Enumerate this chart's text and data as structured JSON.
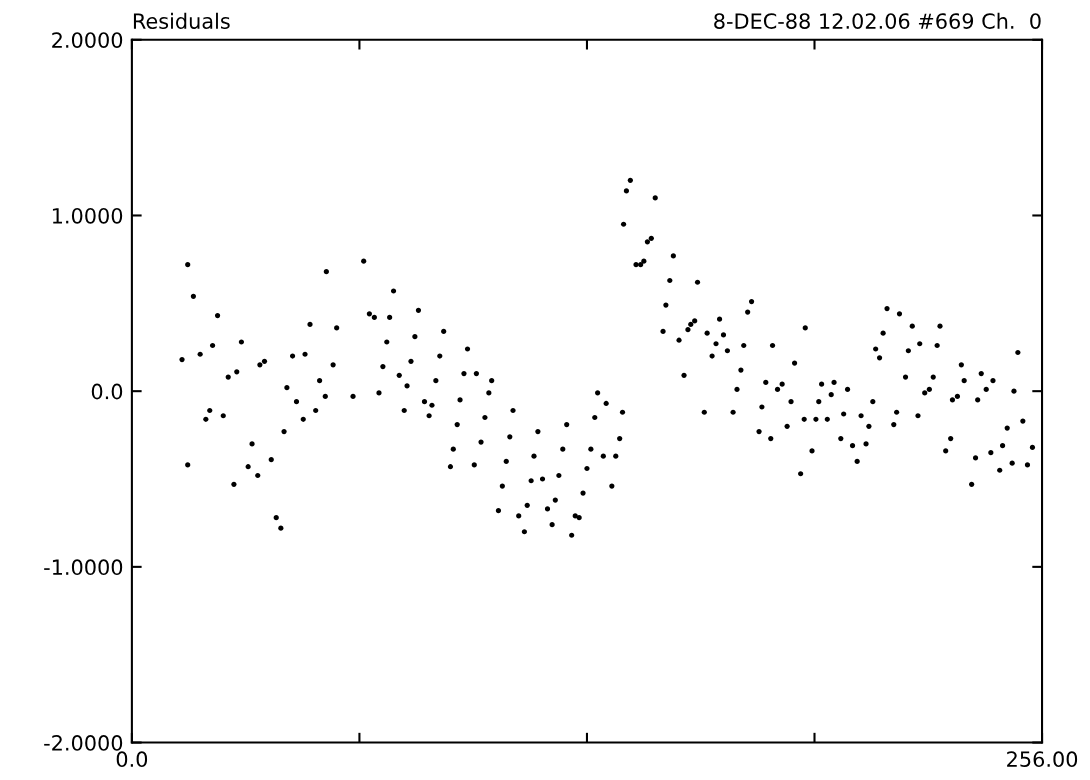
{
  "chart_data": {
    "type": "scatter",
    "title": "Residuals",
    "subtitle": "8-DEC-88 12.02.06 #669 Ch.  0",
    "xlim": [
      0,
      256
    ],
    "ylim": [
      -2,
      2
    ],
    "xticks": [
      {
        "value": 0,
        "label": "0.0"
      },
      {
        "value": 64,
        "label": null
      },
      {
        "value": 128,
        "label": null
      },
      {
        "value": 192,
        "label": null
      },
      {
        "value": 256,
        "label": "256.00"
      }
    ],
    "yticks": [
      {
        "value": -2,
        "label": "-2.0000"
      },
      {
        "value": -1,
        "label": "-1.0000"
      },
      {
        "value": 0,
        "label": "0.0"
      },
      {
        "value": 1,
        "label": "1.0000"
      },
      {
        "value": 2,
        "label": "2.0000"
      }
    ],
    "grid": false,
    "marker": "circle",
    "series": [
      {
        "color": "#000000",
        "x": [
          15.7,
          17.3,
          54.7,
          24.1,
          66.8,
          50.1,
          57.6,
          22.7,
          30.8,
          14.1,
          19.2,
          45.2,
          48.7,
          36.0,
          37.3,
          56.6,
          27.1,
          29.5,
          52.8,
          43.6,
          46.3,
          54.4,
          62.2,
          21.9,
          20.8,
          25.7,
          51.7,
          48.2,
          42.8,
          33.8,
          39.2,
          15.7,
          32.7,
          35.4,
          28.7,
          40.6,
          41.9,
          73.6,
          68.2,
          72.5,
          80.6,
          79.6,
          87.7,
          71.7,
          94.4,
          86.6,
          78.5,
          70.6,
          75.2,
          93.4,
          96.9,
          85.5,
          77.4,
          101.2,
          69.5,
          100.4,
          131.0,
          92.3,
          82.3,
          84.4,
          76.6,
          83.6,
          107.2,
          130.2,
          99.3,
          91.5,
          122.3,
          114.2,
          106.3,
          90.4,
          98.2,
          121.2,
          129.1,
          113.1,
          89.6,
          96.3,
          105.3,
          128.0,
          120.1,
          112.3,
          115.5,
          104.2,
          126.9,
          119.1,
          111.2,
          103.1,
          116.9,
          108.8,
          124.7,
          125.8,
          118.2,
          110.4,
          123.7,
          65.2,
          140.2,
          139.1,
          147.2,
          138.3,
          146.1,
          145.0,
          152.3,
          141.8,
          143.1,
          144.0,
          151.3,
          159.1,
          150.2,
          174.3,
          173.2,
          165.3,
          158.3,
          157.2,
          156.4,
          149.4,
          161.8,
          166.4,
          153.9,
          164.3,
          172.1,
          180.2,
          189.4,
          167.5,
          163.2,
          186.4,
          171.3,
          155.3,
          178.3,
          182.9,
          194.0,
          170.2,
          181.6,
          185.4,
          193.2,
          177.2,
          161.0,
          169.1,
          189.1,
          192.4,
          184.3,
          176.4,
          179.7,
          191.3,
          188.1,
          133.4,
          138.0,
          137.2,
          132.6,
          136.1,
          135.0,
          212.4,
          215.9,
          219.5,
          227.3,
          211.3,
          221.6,
          226.5,
          218.4,
          209.2,
          210.3,
          249.2,
          233.3,
          238.9,
          217.6,
          225.4,
          234.1,
          242.2,
          197.5,
          196.7,
          201.3,
          208.4,
          223.0,
          224.3,
          230.8,
          232.2,
          240.3,
          237.9,
          248.1,
          195.6,
          200.2,
          205.1,
          215.1,
          221.1,
          207.3,
          214.3,
          250.6,
          246.2,
          199.4,
          202.7,
          206.5,
          230.3,
          204.0,
          228.9,
          237.3,
          241.6,
          244.9,
          253.3,
          247.6,
          251.9,
          244.1,
          236.2
        ],
        "values": [
          0.72,
          0.54,
          0.68,
          0.43,
          0.44,
          0.38,
          0.36,
          0.26,
          0.28,
          0.18,
          0.21,
          0.2,
          0.21,
          0.15,
          0.17,
          0.15,
          0.08,
          0.11,
          0.06,
          0.02,
          -0.06,
          -0.03,
          -0.03,
          -0.11,
          -0.16,
          -0.14,
          -0.11,
          -0.16,
          -0.23,
          -0.3,
          -0.39,
          -0.42,
          -0.43,
          -0.48,
          -0.53,
          -0.72,
          -0.78,
          0.57,
          0.42,
          0.42,
          0.46,
          0.31,
          0.34,
          0.28,
          0.24,
          0.2,
          0.17,
          0.14,
          0.09,
          0.1,
          0.1,
          0.06,
          0.03,
          0.06,
          -0.01,
          -0.01,
          -0.01,
          -0.05,
          -0.06,
          -0.08,
          -0.11,
          -0.14,
          -0.11,
          -0.15,
          -0.15,
          -0.19,
          -0.19,
          -0.23,
          -0.26,
          -0.33,
          -0.29,
          -0.33,
          -0.33,
          -0.37,
          -0.43,
          -0.42,
          -0.4,
          -0.44,
          -0.48,
          -0.51,
          -0.5,
          -0.54,
          -0.58,
          -0.62,
          -0.65,
          -0.68,
          -0.67,
          -0.71,
          -0.71,
          -0.72,
          -0.76,
          -0.8,
          -0.82,
          0.74,
          1.2,
          1.14,
          1.1,
          0.95,
          0.87,
          0.85,
          0.77,
          0.72,
          0.72,
          0.74,
          0.63,
          0.62,
          0.49,
          0.51,
          0.45,
          0.41,
          0.4,
          0.38,
          0.35,
          0.34,
          0.33,
          0.32,
          0.29,
          0.27,
          0.26,
          0.26,
          0.36,
          0.23,
          0.2,
          0.16,
          0.12,
          0.09,
          0.05,
          0.04,
          0.04,
          0.01,
          0.01,
          -0.06,
          -0.06,
          -0.09,
          -0.12,
          -0.12,
          -0.16,
          -0.16,
          -0.2,
          -0.23,
          -0.27,
          -0.34,
          -0.47,
          -0.07,
          -0.12,
          -0.27,
          -0.37,
          -0.37,
          -0.54,
          0.47,
          0.44,
          0.37,
          0.37,
          0.33,
          0.27,
          0.26,
          0.23,
          0.24,
          0.19,
          0.22,
          0.15,
          0.1,
          0.08,
          0.08,
          0.06,
          0.06,
          0.05,
          -0.02,
          0.01,
          -0.06,
          -0.01,
          0.01,
          -0.05,
          -0.03,
          0.01,
          -0.05,
          0.0,
          -0.16,
          -0.13,
          -0.14,
          -0.12,
          -0.14,
          -0.2,
          -0.19,
          -0.17,
          -0.21,
          -0.27,
          -0.31,
          -0.3,
          -0.27,
          -0.4,
          -0.34,
          -0.38,
          -0.35,
          -0.31,
          -0.32,
          -0.41,
          -0.42,
          -0.45,
          -0.53
        ]
      }
    ]
  }
}
